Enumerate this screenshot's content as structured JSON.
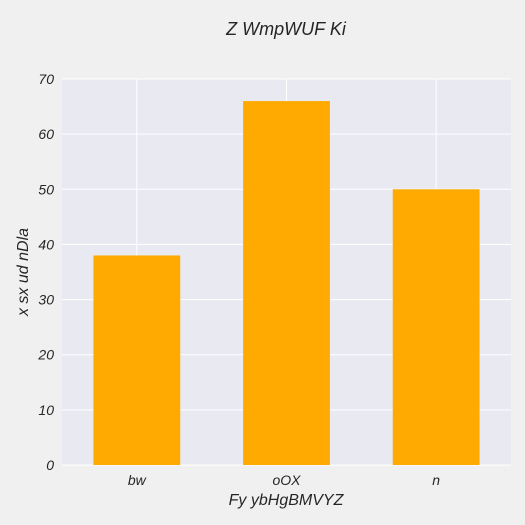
{
  "chart_data": {
    "type": "bar",
    "title": "Z WmpWUF Ki",
    "xlabel": "Fy  ybHgBMVYZ",
    "ylabel": "x  sx ud nDla",
    "categories": [
      "bw",
      "oOX",
      "n"
    ],
    "values": [
      38,
      66,
      50
    ],
    "ylim": [
      0,
      70
    ],
    "yticks": [
      0,
      10,
      20,
      30,
      40,
      50,
      60,
      70
    ],
    "grid": true,
    "colors": {
      "bar": "#ffaa00",
      "plot_background": "#e9e9f1",
      "page_background": "#f0f0f0",
      "grid": "#ffffff"
    }
  }
}
